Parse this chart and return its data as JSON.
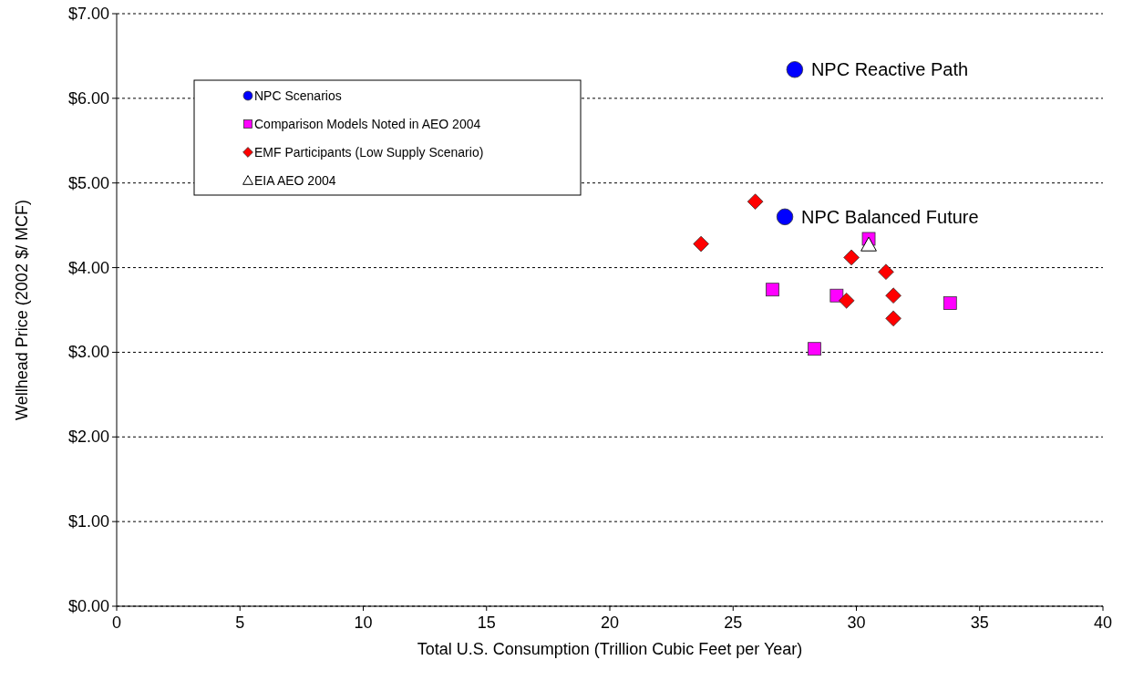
{
  "chart_data": {
    "type": "scatter",
    "xlabel": "Total U.S. Consumption (Trillion Cubic Feet per Year)",
    "ylabel": "Wellhead Price (2002 $/ MCF)",
    "xlim": [
      0,
      40
    ],
    "xticks": [
      0,
      5,
      10,
      15,
      20,
      25,
      30,
      35,
      40
    ],
    "ylim": [
      0,
      7
    ],
    "yticks": [
      {
        "value": 0,
        "label": "$0.00"
      },
      {
        "value": 1,
        "label": "$1.00"
      },
      {
        "value": 2,
        "label": "$2.00"
      },
      {
        "value": 3,
        "label": "$3.00"
      },
      {
        "value": 4,
        "label": "$4.00"
      },
      {
        "value": 5,
        "label": "$5.00"
      },
      {
        "value": 6,
        "label": "$6.00"
      },
      {
        "value": 7,
        "label": "$7.00"
      }
    ],
    "grid": "y",
    "legend": "top left",
    "series": [
      {
        "name": "NPC Scenarios",
        "color": "#0000ff",
        "marker": "circle",
        "x": [
          27.5,
          27.1
        ],
        "values": [
          6.34,
          4.6
        ]
      },
      {
        "name": "Comparison Models Noted in AEO 2004",
        "color": "#ff00ff",
        "marker": "square",
        "x": [
          30.5,
          26.6,
          29.2,
          28.3,
          33.8
        ],
        "values": [
          4.34,
          3.74,
          3.67,
          3.04,
          3.58
        ]
      },
      {
        "name": "EMF Participants (Low Supply Scenario)",
        "color": "#ff0000",
        "marker": "diamond",
        "x": [
          23.7,
          25.9,
          29.8,
          31.2,
          29.6,
          31.5,
          31.5
        ],
        "values": [
          4.28,
          4.78,
          4.12,
          3.95,
          3.61,
          3.67,
          3.4
        ]
      },
      {
        "name": "EIA AEO 2004",
        "color": "#ffffff",
        "marker": "triangle",
        "x": [
          30.5
        ],
        "values": [
          4.27
        ]
      }
    ],
    "annotations": [
      {
        "text": "NPC Reactive Path",
        "x": 27.5,
        "y": 6.34
      },
      {
        "text": "NPC Balanced Future",
        "x": 27.1,
        "y": 4.6
      }
    ]
  }
}
